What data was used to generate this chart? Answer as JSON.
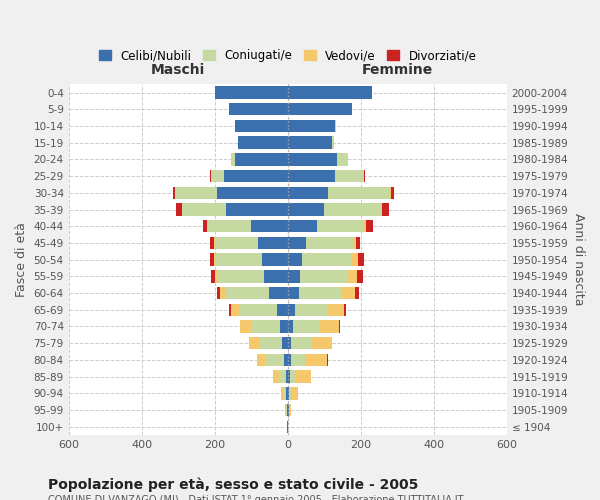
{
  "age_groups": [
    "100+",
    "95-99",
    "90-94",
    "85-89",
    "80-84",
    "75-79",
    "70-74",
    "65-69",
    "60-64",
    "55-59",
    "50-54",
    "45-49",
    "40-44",
    "35-39",
    "30-34",
    "25-29",
    "20-24",
    "15-19",
    "10-14",
    "5-9",
    "0-4"
  ],
  "birth_years": [
    "≤ 1904",
    "1905-1909",
    "1910-1914",
    "1915-1919",
    "1920-1924",
    "1925-1929",
    "1930-1934",
    "1935-1939",
    "1940-1944",
    "1945-1949",
    "1950-1954",
    "1955-1959",
    "1960-1964",
    "1965-1969",
    "1970-1974",
    "1975-1979",
    "1980-1984",
    "1985-1989",
    "1990-1994",
    "1995-1999",
    "2000-2004"
  ],
  "colors": {
    "celibe": "#3b6fad",
    "coniugato": "#c5d9a0",
    "vedovo": "#f5c96b",
    "divorziato": "#cc2222"
  },
  "males": {
    "celibe": [
      2,
      3,
      5,
      5,
      10,
      15,
      20,
      30,
      50,
      65,
      70,
      80,
      100,
      170,
      195,
      175,
      145,
      135,
      145,
      160,
      200
    ],
    "coniugato": [
      0,
      2,
      8,
      20,
      50,
      60,
      80,
      100,
      120,
      130,
      130,
      120,
      120,
      120,
      115,
      35,
      10,
      2,
      0,
      0,
      0
    ],
    "vedovo": [
      0,
      2,
      5,
      15,
      25,
      30,
      30,
      25,
      15,
      5,
      3,
      2,
      0,
      0,
      0,
      0,
      0,
      0,
      0,
      0,
      0
    ],
    "divorziato": [
      0,
      0,
      0,
      0,
      0,
      2,
      2,
      5,
      8,
      10,
      10,
      10,
      12,
      15,
      5,
      2,
      0,
      0,
      0,
      0,
      0
    ]
  },
  "females": {
    "nubile": [
      2,
      3,
      4,
      5,
      8,
      10,
      15,
      20,
      30,
      35,
      40,
      50,
      80,
      100,
      110,
      130,
      135,
      120,
      130,
      175,
      230
    ],
    "coniugata": [
      0,
      2,
      5,
      15,
      40,
      55,
      70,
      90,
      120,
      130,
      135,
      130,
      130,
      155,
      170,
      80,
      30,
      8,
      2,
      0,
      0
    ],
    "vedova": [
      0,
      5,
      20,
      45,
      60,
      55,
      55,
      45,
      35,
      25,
      18,
      8,
      5,
      2,
      2,
      0,
      0,
      0,
      0,
      0,
      0
    ],
    "divorziata": [
      0,
      0,
      0,
      0,
      2,
      2,
      3,
      5,
      10,
      15,
      15,
      10,
      18,
      20,
      8,
      2,
      0,
      0,
      0,
      0,
      0
    ]
  },
  "title": "Popolazione per età, sesso e stato civile - 2005",
  "subtitle": "COMUNE DI VANZAGO (MI) - Dati ISTAT 1° gennaio 2005 - Elaborazione TUTTITALIA.IT",
  "xlabel_left": "Maschi",
  "xlabel_right": "Femmine",
  "ylabel_left": "Fasce di età",
  "ylabel_right": "Anni di nascita",
  "xlim": 600,
  "legend_labels": [
    "Celibi/Nubili",
    "Coniugati/e",
    "Vedovi/e",
    "Divorziati/e"
  ],
  "bg_color": "#f0f0f0",
  "plot_bg_color": "#ffffff",
  "grid_color": "#cccccc"
}
